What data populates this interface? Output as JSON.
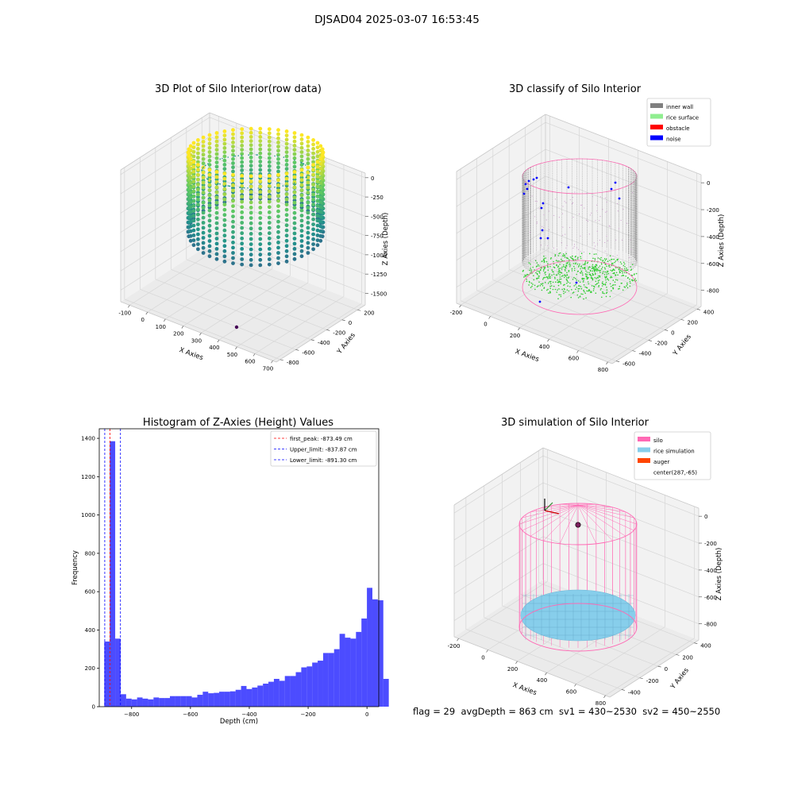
{
  "figure": {
    "suptitle": "DJSAD04 2025-03-07 16:53:45",
    "footer": "flag = 29  avgDepth = 863 cm  sv1 = 430~2530  sv2 = 450~2550"
  },
  "chart_data": [
    {
      "type": "scatter3d",
      "title": "3D Plot of Silo Interior(row data)",
      "xlabel": "X Axies",
      "ylabel": "Y Axies",
      "zlabel": "Z Axies (Depth)",
      "x_ticks": [
        -100,
        0,
        100,
        200,
        300,
        400,
        500,
        600,
        700
      ],
      "y_ticks": [
        -800,
        -600,
        -400,
        -200,
        0,
        200
      ],
      "z_ticks": [
        0,
        -250,
        -500,
        -750,
        -1000,
        -1250,
        -1500
      ],
      "xlim": [
        -150,
        720
      ],
      "ylim": [
        -850,
        300
      ],
      "zlim": [
        -1650,
        60
      ],
      "colormap": "viridis",
      "description_points": "ring of vertical point columns, depth 0 to -1300, plus one outlier near z=-1650",
      "outlier": {
        "x": 560,
        "y": -700,
        "z": -1650
      }
    },
    {
      "type": "scatter3d",
      "title": "3D classify of Silo Interior",
      "xlabel": "X Axies",
      "ylabel": "Y Axies",
      "zlabel": "Z Axies (Depth)",
      "x_ticks": [
        -200,
        0,
        200,
        400,
        600,
        800
      ],
      "y_ticks": [
        -600,
        -400,
        -200,
        0,
        200,
        400
      ],
      "z_ticks": [
        0,
        -200,
        -400,
        -600,
        -800
      ],
      "xlim": [
        -230,
        830
      ],
      "ylim": [
        -650,
        450
      ],
      "zlim": [
        -920,
        60
      ],
      "legend": [
        {
          "label": "inner wall",
          "color": "#808080"
        },
        {
          "label": "rice surface",
          "color": "#90ee90"
        },
        {
          "label": "obstacle",
          "color": "#ff0000"
        },
        {
          "label": "noise",
          "color": "#0000ff"
        }
      ],
      "legend_position": "top-right"
    },
    {
      "type": "histogram",
      "title": "Histogram of Z-Axies (Height) Values",
      "xlabel": "Depth (cm)",
      "ylabel": "Frequency",
      "x_ticks": [
        -800,
        -600,
        -400,
        -200,
        0
      ],
      "y_ticks": [
        0,
        200,
        400,
        600,
        800,
        1000,
        1200,
        1400
      ],
      "xlim": [
        -910,
        40
      ],
      "ylim": [
        0,
        1450
      ],
      "bar_color": "#0000ff",
      "bin_width": 18.6,
      "bins_start": -893,
      "values": [
        340,
        1385,
        355,
        65,
        42,
        38,
        48,
        42,
        38,
        48,
        45,
        45,
        55,
        55,
        55,
        55,
        48,
        62,
        78,
        70,
        72,
        78,
        78,
        80,
        88,
        108,
        92,
        100,
        110,
        120,
        130,
        145,
        135,
        160,
        160,
        180,
        205,
        210,
        230,
        240,
        280,
        280,
        300,
        380,
        360,
        355,
        390,
        460,
        620,
        560,
        555,
        145
      ],
      "lines": [
        {
          "label": "first_peak: -873.49 cm",
          "x": -873.49,
          "color": "#ff0000"
        },
        {
          "label": "Upper_limit: -837.87 cm",
          "x": -837.87,
          "color": "#0000ff"
        },
        {
          "label": "Lower_limit: -891.30 cm",
          "x": -891.3,
          "color": "#0000ff"
        }
      ],
      "legend_position": "top-right"
    },
    {
      "type": "surface3d",
      "title": "3D simulation of Silo Interior",
      "xlabel": "X Axies",
      "ylabel": "Y Axies",
      "zlabel": "Z Axies (Depth)",
      "x_ticks": [
        -200,
        0,
        200,
        400,
        600,
        800
      ],
      "y_ticks": [
        -400,
        -200,
        0,
        200,
        400
      ],
      "z_ticks": [
        0,
        -200,
        -400,
        -600,
        -800
      ],
      "xlim": [
        -230,
        830
      ],
      "ylim": [
        -530,
        450
      ],
      "zlim": [
        -920,
        60
      ],
      "legend": [
        {
          "label": "silo",
          "color": "#ff69b4"
        },
        {
          "label": "rice simulation",
          "color": "#87ceeb"
        },
        {
          "label": "auger",
          "color": "#ff4500"
        },
        {
          "label": "center(287,-65)",
          "color": ""
        }
      ],
      "legend_position": "top-right"
    }
  ]
}
